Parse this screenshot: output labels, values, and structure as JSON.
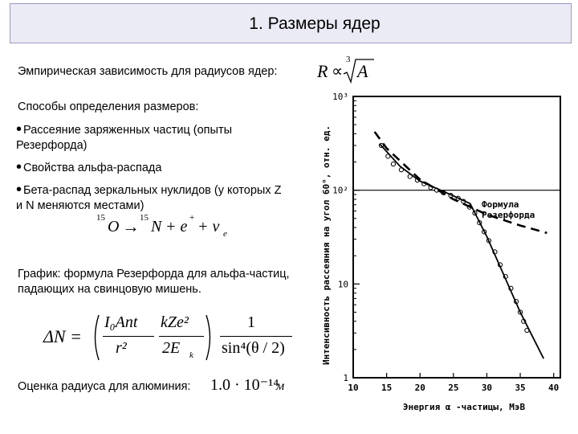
{
  "header": {
    "title": "1. Размеры ядер"
  },
  "empirical": {
    "text": "Эмпирическая зависимость для радиусов ядер:",
    "formula_lhs": "R",
    "formula_rel": "∝",
    "formula_root_index": "3",
    "formula_var": "A"
  },
  "methods": {
    "heading": "Способы определения размеров:",
    "items": [
      "Рассеяние заряженных частиц (опыты",
      "Резерфорда)",
      "Свойства альфа-распада",
      "Бета-распад зеркальных нуклидов (у которых Z",
      "и N меняются местами)"
    ]
  },
  "reaction": {
    "a1": "15",
    "x1": "O",
    "arrow": "→",
    "a2": "15",
    "x2": "N",
    "p1": "+ e",
    "plus": "+",
    "p2": "+ ν",
    "sub": "e"
  },
  "graph_caption": {
    "line1": "График: формула Резерфорда для альфа-частиц,",
    "line2": "падающих на свинцовую мишень."
  },
  "rutherford_formula": {
    "lhs": "ΔN =",
    "num1": "I₀Ant",
    "den1": "r²",
    "num2": "kZe²",
    "den2": "2E",
    "den2_sub": "k",
    "num3": "1",
    "den3": "sin⁴(θ / 2)"
  },
  "estimate": {
    "text": "Оценка радиуса для алюминия:",
    "value": "1.0 · 10⁻¹⁴",
    "unit": "м"
  },
  "chart_data": {
    "type": "scatter",
    "xlabel": "Энергия α -частицы, МэВ",
    "ylabel": "Интенсивность рассеяния на угол 60°, отн. ед.",
    "x_ticks": [
      "10",
      "15",
      "20",
      "25",
      "30",
      "35",
      "40"
    ],
    "y_ticks": [
      "1",
      "10",
      "10²",
      "10³"
    ],
    "y_scale": "log",
    "xlim": [
      10,
      41
    ],
    "ylim": [
      1,
      1000
    ],
    "grid_y": [
      100
    ],
    "annotation": [
      "Формула",
      "Резерфорда"
    ],
    "series": [
      {
        "style": "measured",
        "points": [
          [
            14.2,
            300
          ],
          [
            15.2,
            230
          ],
          [
            16.0,
            190
          ],
          [
            17.2,
            165
          ],
          [
            18.5,
            140
          ],
          [
            19.6,
            128
          ],
          [
            20.6,
            117
          ],
          [
            21.6,
            107
          ],
          [
            22.5,
            100
          ],
          [
            23.5,
            94
          ],
          [
            24.6,
            88
          ],
          [
            25.7,
            82
          ],
          [
            26.5,
            76
          ],
          [
            27.4,
            66
          ],
          [
            28.2,
            57
          ],
          [
            28.9,
            45
          ],
          [
            29.6,
            36
          ],
          [
            30.3,
            29
          ],
          [
            31.2,
            22
          ],
          [
            32.0,
            16
          ],
          [
            32.8,
            12
          ],
          [
            33.6,
            9
          ],
          [
            34.4,
            6.5
          ],
          [
            35.0,
            5
          ],
          [
            35.5,
            4
          ],
          [
            36.0,
            3.2
          ]
        ]
      },
      {
        "style": "rutherford-dashed",
        "points": [
          [
            13.2,
            420
          ],
          [
            15,
            280
          ],
          [
            20,
            130
          ],
          [
            25,
            80
          ],
          [
            30,
            55
          ],
          [
            35,
            42
          ],
          [
            39,
            35
          ]
        ]
      },
      {
        "style": "fit",
        "points": [
          [
            14,
            310
          ],
          [
            17,
            180
          ],
          [
            20,
            125
          ],
          [
            25,
            87
          ],
          [
            27.5,
            72
          ],
          [
            30,
            32
          ],
          [
            35,
            5
          ],
          [
            38.5,
            1.6
          ]
        ]
      }
    ]
  }
}
